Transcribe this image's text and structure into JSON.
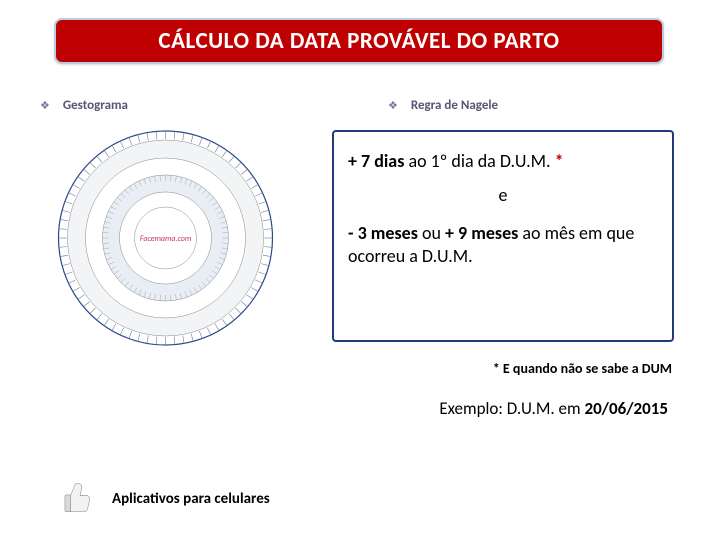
{
  "title": "CÁLCULO DA DATA PROVÁVEL DO PARTO",
  "bullets": {
    "left": "Gestograma",
    "right": "Regra de Nagele"
  },
  "gestogram": {
    "rings": [
      {
        "diameter": 214,
        "stroke": "#2b4a8b",
        "fill": "none",
        "width": 1.2
      },
      {
        "diameter": 196,
        "stroke": "#888888",
        "fill": "#f2f4f6",
        "width": 0.5
      },
      {
        "diameter": 160,
        "stroke": "#888888",
        "fill": "#ffffff",
        "width": 0.5
      },
      {
        "diameter": 126,
        "stroke": "#888888",
        "fill": "#e9eef4",
        "width": 0.5
      },
      {
        "diameter": 92,
        "stroke": "#888888",
        "fill": "#ffffff",
        "width": 0.5
      },
      {
        "diameter": 62,
        "stroke": "#888888",
        "fill": "#ffffff",
        "width": 0.5
      }
    ],
    "halves": {
      "left": "#d9e6f2",
      "right": "#cfe9e8",
      "diameter": 196
    },
    "center_text": "Facemama.com",
    "center_text_color": "#cc3355",
    "tick_count": 72,
    "tick_color": "#6b7b99"
  },
  "nagele": {
    "line1_a": "+ 7 dias",
    "line1_b": " ao 1º dia da D.U.M. ",
    "line1_c": "*",
    "conj": "e",
    "line2_a": "- 3 meses",
    "line2_b": " ou ",
    "line2_c": "+ 9 meses",
    "line2_d": " ao mês em que ocorreu a D.U.M."
  },
  "footnote": "* E quando não se sabe a DUM",
  "example_a": "Exemplo: D.U.M. em ",
  "example_b": "20/06/2015",
  "apps": "Aplicativos para celulares"
}
